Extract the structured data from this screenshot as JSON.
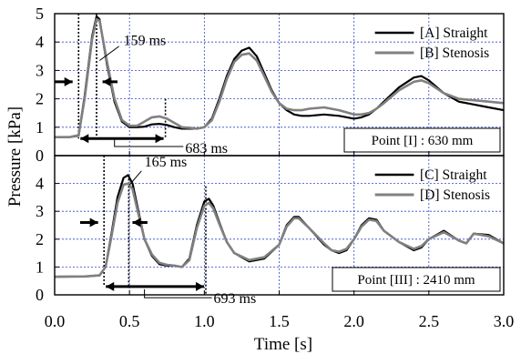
{
  "chart_data": [
    {
      "type": "line",
      "panel": "top",
      "xlabel": "Time [s]",
      "ylabel": "Pressure [kPa]",
      "xlim": [
        0,
        3.0
      ],
      "ylim": [
        0,
        5
      ],
      "x_ticks": [
        "0.0",
        "0.5",
        "1.0",
        "1.5",
        "2.0",
        "2.5",
        "3.0"
      ],
      "y_ticks": [
        "0",
        "1",
        "2",
        "3",
        "4",
        "5"
      ],
      "grid": true,
      "legend_position": "top-right",
      "box_label": "Point [I] : 630 mm",
      "annotations": {
        "short_interval": "159 ms",
        "long_interval": "683 ms"
      },
      "series": [
        {
          "name": "[A] Straight",
          "color": "#000000",
          "x": [
            0,
            0.1,
            0.16,
            0.2,
            0.25,
            0.28,
            0.3,
            0.35,
            0.4,
            0.45,
            0.5,
            0.55,
            0.6,
            0.65,
            0.7,
            0.75,
            0.8,
            0.85,
            0.9,
            0.95,
            1.0,
            1.05,
            1.1,
            1.15,
            1.2,
            1.25,
            1.3,
            1.35,
            1.4,
            1.45,
            1.5,
            1.55,
            1.6,
            1.65,
            1.7,
            1.8,
            1.9,
            2.0,
            2.05,
            2.1,
            2.15,
            2.2,
            2.3,
            2.4,
            2.45,
            2.5,
            2.6,
            2.7,
            2.8,
            2.9,
            3.0
          ],
          "y": [
            0.65,
            0.65,
            0.7,
            2.1,
            4.2,
            4.9,
            4.8,
            3.2,
            1.9,
            1.2,
            1.0,
            1.0,
            1.02,
            1.1,
            1.12,
            1.08,
            1.0,
            0.95,
            0.95,
            0.95,
            1.0,
            1.3,
            2.0,
            2.8,
            3.4,
            3.7,
            3.8,
            3.5,
            2.9,
            2.3,
            1.85,
            1.6,
            1.45,
            1.4,
            1.4,
            1.45,
            1.4,
            1.3,
            1.35,
            1.45,
            1.65,
            1.9,
            2.4,
            2.75,
            2.8,
            2.65,
            2.2,
            1.9,
            1.8,
            1.7,
            1.6
          ]
        },
        {
          "name": "[B] Stenosis",
          "color": "#808080",
          "x": [
            0,
            0.1,
            0.16,
            0.2,
            0.25,
            0.28,
            0.3,
            0.35,
            0.4,
            0.45,
            0.5,
            0.55,
            0.6,
            0.65,
            0.7,
            0.75,
            0.8,
            0.85,
            0.9,
            0.95,
            1.0,
            1.05,
            1.1,
            1.15,
            1.2,
            1.25,
            1.3,
            1.35,
            1.4,
            1.45,
            1.5,
            1.55,
            1.6,
            1.65,
            1.7,
            1.8,
            1.9,
            2.0,
            2.05,
            2.1,
            2.15,
            2.2,
            2.3,
            2.4,
            2.45,
            2.5,
            2.6,
            2.7,
            2.8,
            2.9,
            3.0
          ],
          "y": [
            0.65,
            0.65,
            0.72,
            2.0,
            4.1,
            4.8,
            4.75,
            3.3,
            2.0,
            1.25,
            1.05,
            1.05,
            1.2,
            1.35,
            1.38,
            1.3,
            1.15,
            1.0,
            0.98,
            0.95,
            1.0,
            1.25,
            1.9,
            2.7,
            3.3,
            3.55,
            3.6,
            3.35,
            2.8,
            2.25,
            1.85,
            1.65,
            1.6,
            1.6,
            1.65,
            1.7,
            1.6,
            1.45,
            1.45,
            1.5,
            1.65,
            1.85,
            2.3,
            2.6,
            2.65,
            2.55,
            2.2,
            2.0,
            1.95,
            1.9,
            1.85
          ]
        }
      ]
    },
    {
      "type": "line",
      "panel": "bottom",
      "xlabel": "Time [s]",
      "ylabel": "Pressure [kPa]",
      "xlim": [
        0,
        3.0
      ],
      "ylim": [
        0,
        5
      ],
      "x_ticks": [
        "0.0",
        "0.5",
        "1.0",
        "1.5",
        "2.0",
        "2.5",
        "3.0"
      ],
      "y_ticks": [
        "0",
        "1",
        "2",
        "3",
        "4"
      ],
      "grid": true,
      "legend_position": "top-right",
      "box_label": "Point [III] : 2410 mm",
      "annotations": {
        "short_interval": "165 ms",
        "long_interval": "693 ms"
      },
      "series": [
        {
          "name": "[C] Straight",
          "color": "#000000",
          "x": [
            0,
            0.2,
            0.3,
            0.34,
            0.38,
            0.42,
            0.46,
            0.49,
            0.52,
            0.56,
            0.6,
            0.65,
            0.7,
            0.75,
            0.8,
            0.85,
            0.9,
            0.95,
            1.0,
            1.03,
            1.06,
            1.1,
            1.15,
            1.2,
            1.3,
            1.4,
            1.5,
            1.55,
            1.6,
            1.63,
            1.7,
            1.8,
            1.85,
            1.9,
            1.95,
            2.0,
            2.05,
            2.1,
            2.15,
            2.2,
            2.3,
            2.4,
            2.45,
            2.5,
            2.6,
            2.7,
            2.75,
            2.8,
            2.9,
            3.0
          ],
          "y": [
            0.65,
            0.66,
            0.7,
            1.0,
            2.2,
            3.5,
            4.2,
            4.3,
            4.0,
            3.0,
            2.0,
            1.4,
            1.1,
            1.05,
            1.05,
            1.0,
            1.3,
            2.5,
            3.35,
            3.45,
            3.2,
            2.6,
            1.9,
            1.5,
            1.2,
            1.3,
            1.8,
            2.5,
            2.8,
            2.8,
            2.4,
            1.8,
            1.6,
            1.5,
            1.6,
            2.0,
            2.5,
            2.75,
            2.7,
            2.3,
            1.9,
            1.6,
            1.7,
            2.0,
            2.3,
            1.95,
            1.85,
            2.2,
            2.15,
            1.85
          ]
        },
        {
          "name": "[D] Stenosis",
          "color": "#808080",
          "x": [
            0,
            0.2,
            0.3,
            0.34,
            0.38,
            0.42,
            0.46,
            0.49,
            0.52,
            0.56,
            0.6,
            0.65,
            0.7,
            0.75,
            0.8,
            0.85,
            0.9,
            0.95,
            1.0,
            1.03,
            1.06,
            1.1,
            1.15,
            1.2,
            1.3,
            1.4,
            1.5,
            1.55,
            1.6,
            1.63,
            1.7,
            1.8,
            1.85,
            1.9,
            1.95,
            2.0,
            2.05,
            2.1,
            2.15,
            2.2,
            2.3,
            2.4,
            2.45,
            2.5,
            2.6,
            2.7,
            2.75,
            2.8,
            2.9,
            3.0
          ],
          "y": [
            0.65,
            0.66,
            0.7,
            1.0,
            2.1,
            3.3,
            3.95,
            4.0,
            3.8,
            2.9,
            2.0,
            1.45,
            1.15,
            1.08,
            1.05,
            1.0,
            1.25,
            2.4,
            3.2,
            3.3,
            3.1,
            2.55,
            1.9,
            1.5,
            1.25,
            1.35,
            1.8,
            2.45,
            2.75,
            2.75,
            2.4,
            1.85,
            1.6,
            1.55,
            1.65,
            2.0,
            2.45,
            2.7,
            2.65,
            2.3,
            1.9,
            1.65,
            1.75,
            2.0,
            2.25,
            1.95,
            1.85,
            2.2,
            2.1,
            1.85
          ]
        }
      ]
    }
  ]
}
